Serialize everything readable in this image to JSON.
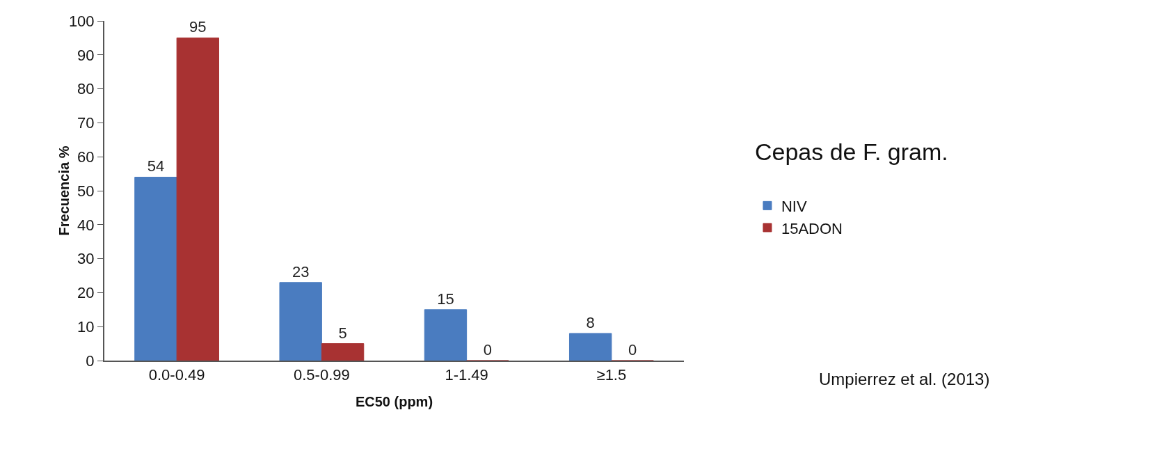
{
  "chart_data": {
    "type": "bar",
    "legend_title": "Cepas de F. gram.",
    "xlabel": "EC50 (ppm)",
    "ylabel": "Frecuencia %",
    "categories": [
      "0.0-0.49",
      "0.5-0.99",
      "1-1.49",
      "≥1.5"
    ],
    "series": [
      {
        "name": "NIV",
        "color": "#4a7cc0",
        "values": [
          54,
          23,
          15,
          8
        ]
      },
      {
        "name": "15ADON",
        "color": "#a83232",
        "values": [
          95,
          5,
          0,
          0
        ]
      }
    ],
    "ylim": [
      0,
      100
    ],
    "yticks": [
      0,
      10,
      20,
      30,
      40,
      50,
      60,
      70,
      80,
      90,
      100
    ],
    "data_labels": true,
    "grid": false,
    "legend": "right",
    "annotations": [
      "Umpierrez et al. (2013)"
    ]
  }
}
